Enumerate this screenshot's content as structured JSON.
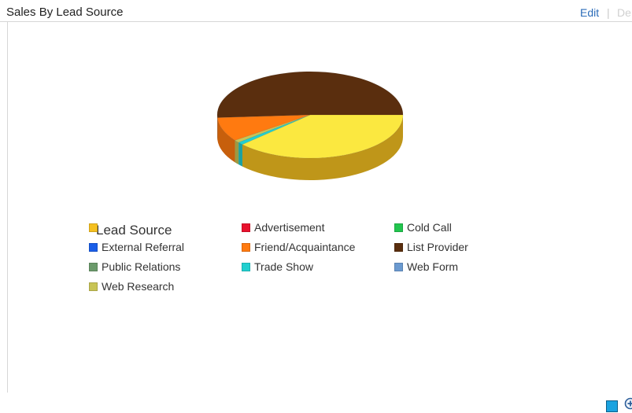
{
  "header": {
    "title": "Sales By Lead Source",
    "edit_label": "Edit",
    "separator": "|",
    "delete_label": "De"
  },
  "chart_data": {
    "type": "pie",
    "legend_title": "Lead Source",
    "categories": [
      "",
      "Advertisement",
      "Cold Call",
      "External Referral",
      "Friend/Acquaintance",
      "List Provider",
      "Public Relations",
      "Trade Show",
      "Web Form",
      "Web Research"
    ],
    "colors": [
      "#f5c020",
      "#e8112d",
      "#22c54e",
      "#1a5ee8",
      "#ff7a10",
      "#5a2e0e",
      "#6b9a6b",
      "#22cfcf",
      "#6b9ad0",
      "#c8c456"
    ],
    "values": [
      38,
      0,
      0,
      0,
      9,
      51,
      0,
      1,
      0,
      1
    ],
    "legend_position": "bottom-left"
  },
  "toolbar": {
    "square_icon": "square-icon",
    "zoom_icon": "zoom-in-icon"
  }
}
